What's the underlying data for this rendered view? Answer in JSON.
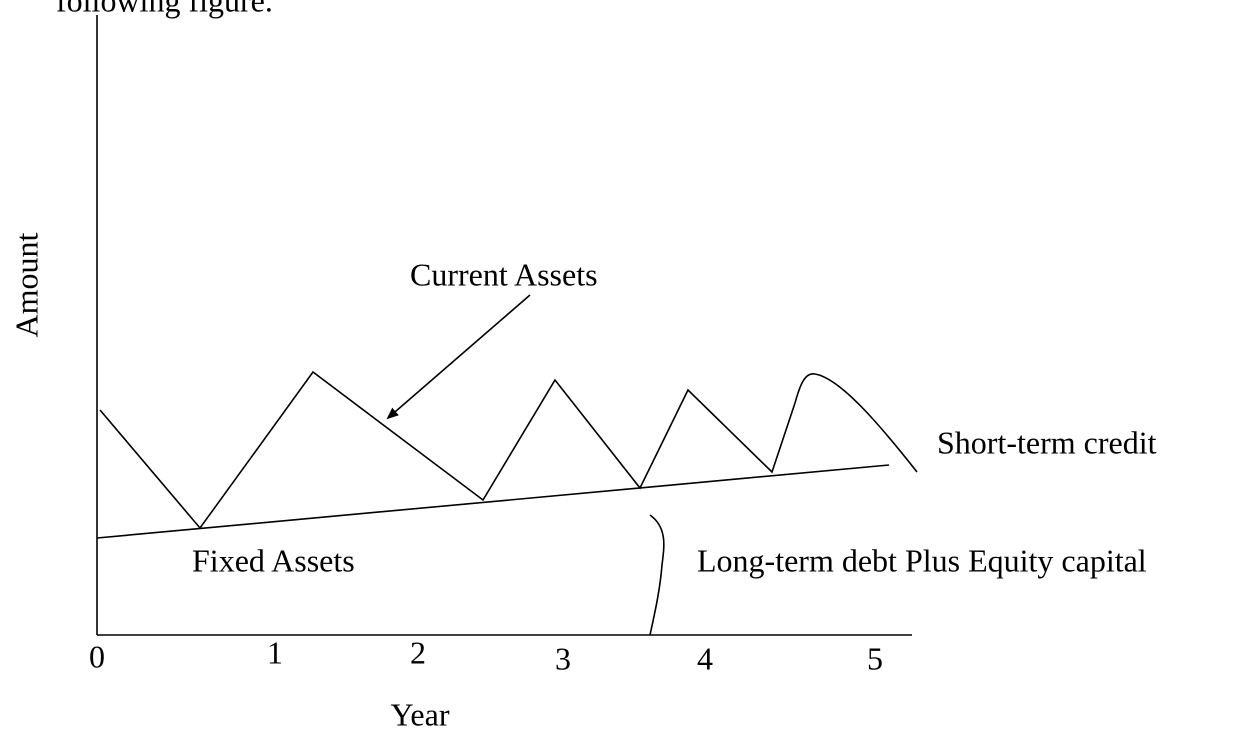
{
  "header": {
    "text": "following figure."
  },
  "axes": {
    "y_label": "Amount",
    "x_label": "Year",
    "x_tick_labels": [
      "0",
      "1",
      "2",
      "3",
      "4",
      "5"
    ]
  },
  "annotations": {
    "current_assets": "Current Assets",
    "short_term_credit": "Short-term credit",
    "fixed_assets": "Fixed Assets",
    "long_term": "Long-term debt Plus Equity capital"
  }
}
